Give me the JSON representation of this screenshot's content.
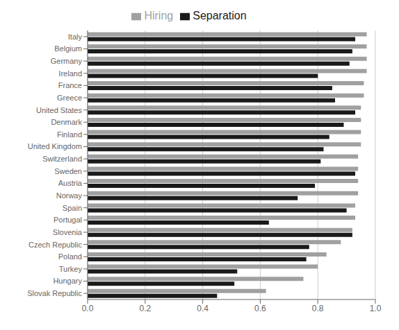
{
  "chart_data": {
    "type": "bar",
    "orientation": "horizontal",
    "categories": [
      "Italy",
      "Belgium",
      "Germany",
      "Ireland",
      "France",
      "Greece",
      "United States",
      "Denmark",
      "Finland",
      "United Kingdom",
      "Switzerland",
      "Sweden",
      "Austria",
      "Norway",
      "Spain",
      "Portugal",
      "Slovenia",
      "Czech Republic",
      "Poland",
      "Turkey",
      "Hungary",
      "Slovak Republic"
    ],
    "series": [
      {
        "name": "Hiring",
        "color": "#a0a0a0",
        "values": [
          0.97,
          0.97,
          0.97,
          0.97,
          0.96,
          0.96,
          0.95,
          0.95,
          0.95,
          0.95,
          0.94,
          0.94,
          0.94,
          0.94,
          0.93,
          0.93,
          0.92,
          0.88,
          0.83,
          0.8,
          0.75,
          0.62
        ]
      },
      {
        "name": "Separation",
        "color": "#1a1a1a",
        "values": [
          0.93,
          0.92,
          0.91,
          0.8,
          0.85,
          0.86,
          0.93,
          0.89,
          0.84,
          0.82,
          0.81,
          0.93,
          0.79,
          0.73,
          0.9,
          0.63,
          0.92,
          0.77,
          0.76,
          0.52,
          0.51,
          0.45
        ]
      }
    ],
    "xlim": [
      0.0,
      1.0
    ],
    "xticks": [
      {
        "value": 0.0,
        "label": "0.0"
      },
      0.2,
      0.4,
      0.6,
      0.8,
      {
        "value": 1.0,
        "label": "1.0"
      }
    ],
    "grid": true,
    "legend": "top"
  }
}
